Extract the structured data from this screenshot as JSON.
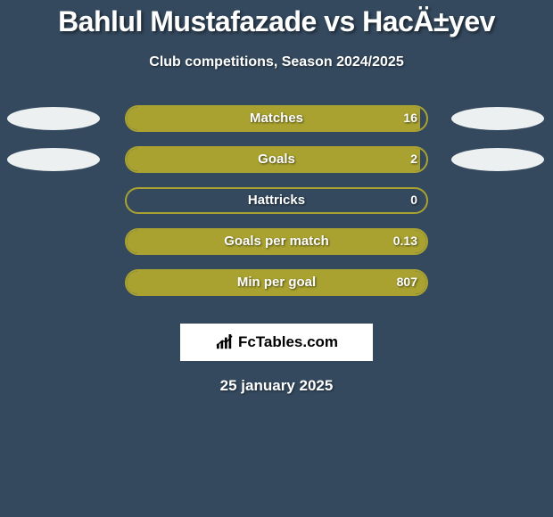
{
  "title": "Bahlul Mustafazade vs HacÄ±yev",
  "subtitle": "Club competitions, Season 2024/2025",
  "date": "25 january 2025",
  "logo_text": "FcTables.com",
  "colors": {
    "background": "#34495e",
    "bar_fill": "#a9a230",
    "bar_border": "#a9a230",
    "ellipse_left": "#ecf0f1",
    "ellipse_right": "#ecf0f1",
    "text": "#ffffff"
  },
  "rows": [
    {
      "label": "Matches",
      "value": "16",
      "fill_pct": 98,
      "show_left_ellipse": true,
      "show_right_ellipse": true
    },
    {
      "label": "Goals",
      "value": "2",
      "fill_pct": 98,
      "show_left_ellipse": true,
      "show_right_ellipse": true
    },
    {
      "label": "Hattricks",
      "value": "0",
      "fill_pct": 0,
      "show_left_ellipse": false,
      "show_right_ellipse": false
    },
    {
      "label": "Goals per match",
      "value": "0.13",
      "fill_pct": 100,
      "show_left_ellipse": false,
      "show_right_ellipse": false
    },
    {
      "label": "Min per goal",
      "value": "807",
      "fill_pct": 100,
      "show_left_ellipse": false,
      "show_right_ellipse": false
    }
  ]
}
